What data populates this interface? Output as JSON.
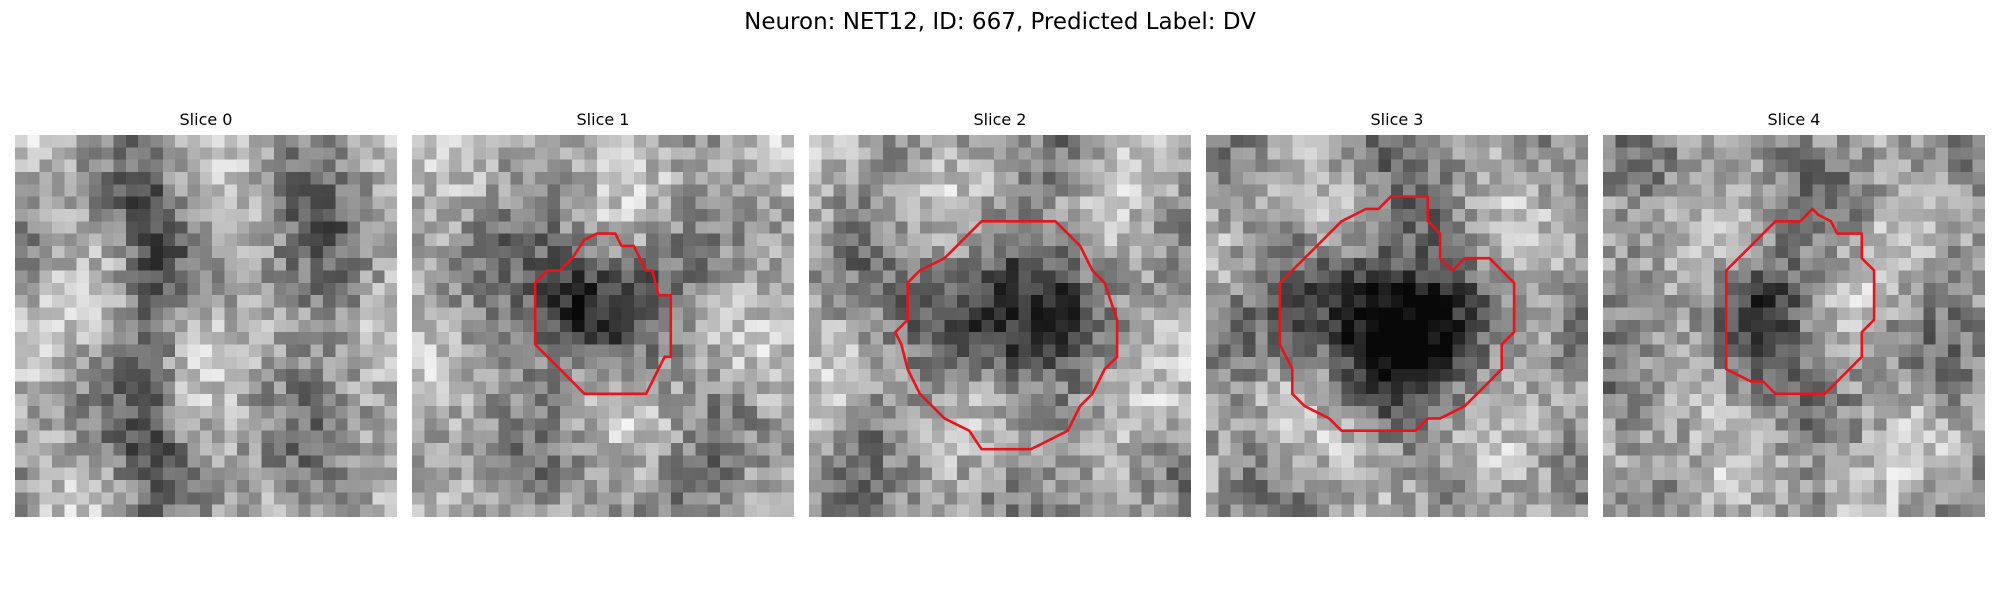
{
  "figure": {
    "title": "Neuron: NET12, ID: 667, Predicted Label: DV"
  },
  "colors": {
    "contour": "#e8141c",
    "background": "#ffffff"
  },
  "slices": [
    {
      "label": "Slice 0",
      "has_contour": false
    },
    {
      "label": "Slice 1",
      "has_contour": true
    },
    {
      "label": "Slice 2",
      "has_contour": true
    },
    {
      "label": "Slice 3",
      "has_contour": true
    },
    {
      "label": "Slice 4",
      "has_contour": true
    }
  ]
}
